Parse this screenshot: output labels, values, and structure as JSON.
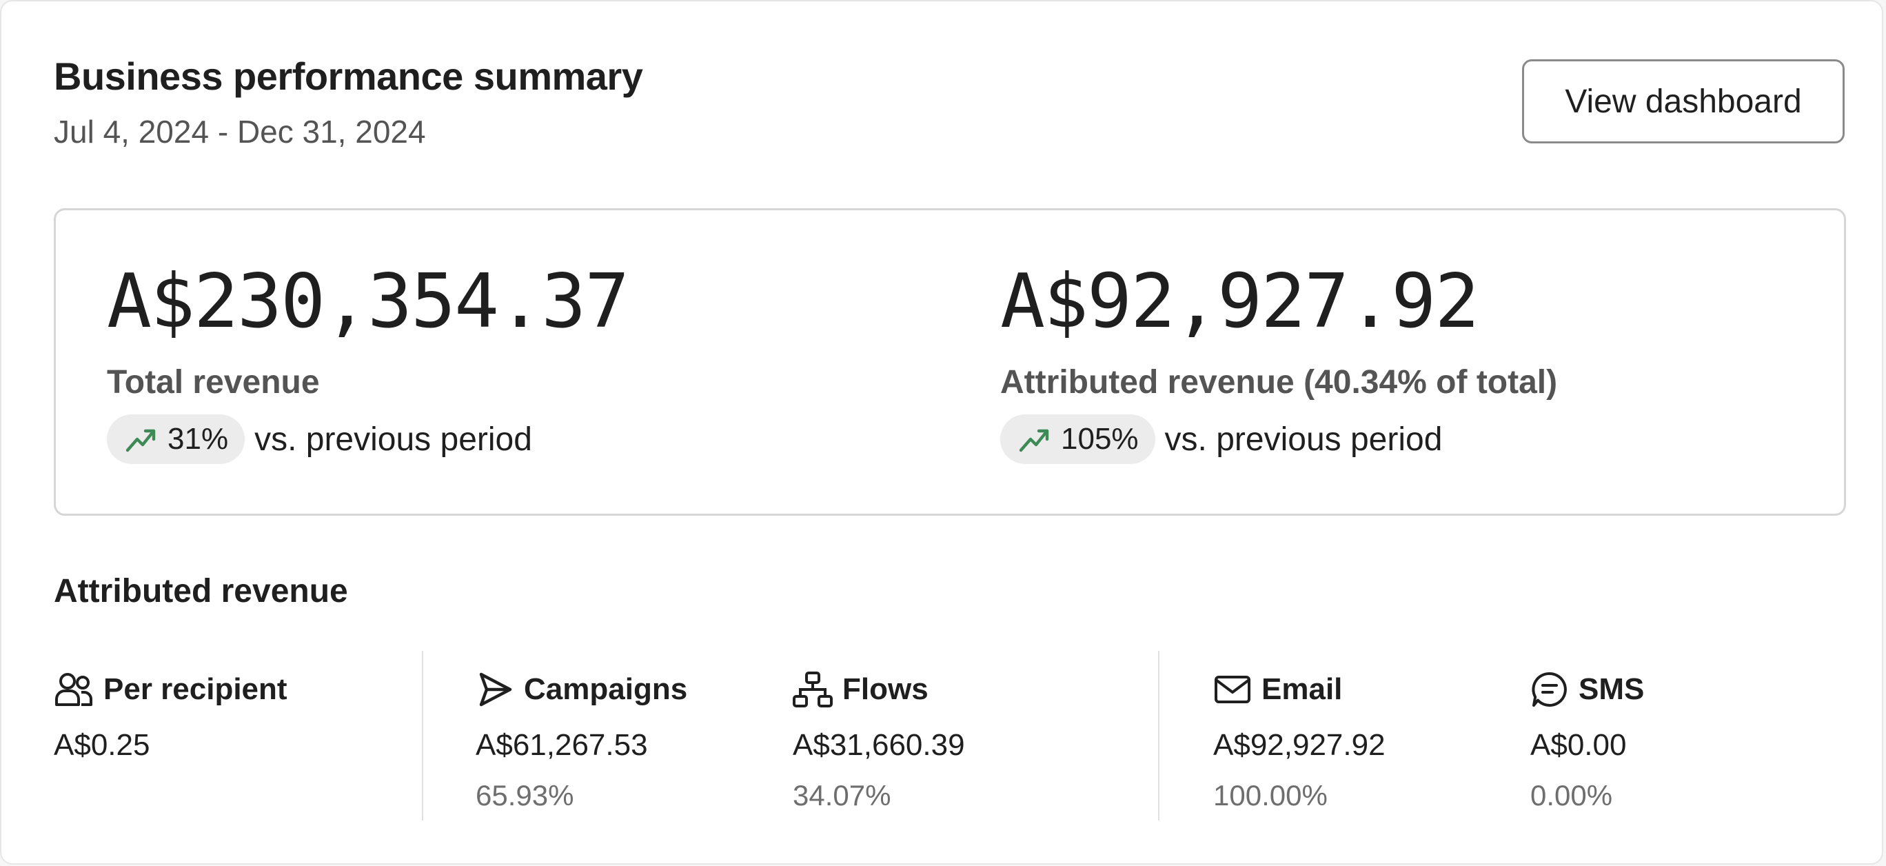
{
  "header": {
    "title": "Business performance summary",
    "date_range": "Jul 4, 2024 - Dec 31, 2024",
    "view_button": "View dashboard"
  },
  "summary": {
    "total": {
      "amount": "A$230,354.37",
      "label": "Total revenue",
      "change": "31%",
      "trend": "up",
      "comparison": "vs. previous period"
    },
    "attributed": {
      "amount": "A$92,927.92",
      "label": "Attributed revenue (40.34% of total)",
      "change": "105%",
      "trend": "up",
      "comparison": "vs. previous period"
    }
  },
  "attributed_section": {
    "title": "Attributed revenue",
    "stats": [
      {
        "name": "Per recipient",
        "icon": "users-icon",
        "value": "A$0.25",
        "percent": ""
      },
      {
        "name": "Campaigns",
        "icon": "send-icon",
        "value": "A$61,267.53",
        "percent": "65.93%"
      },
      {
        "name": "Flows",
        "icon": "flow-icon",
        "value": "A$31,660.39",
        "percent": "34.07%"
      },
      {
        "name": "Email",
        "icon": "mail-icon",
        "value": "A$92,927.92",
        "percent": "100.00%"
      },
      {
        "name": "SMS",
        "icon": "sms-icon",
        "value": "A$0.00",
        "percent": "0.00%"
      }
    ]
  },
  "colors": {
    "trend_up": "#3d8a57",
    "pill_bg": "#ececec",
    "text_primary": "#1f1f1f",
    "text_secondary": "#545454"
  }
}
